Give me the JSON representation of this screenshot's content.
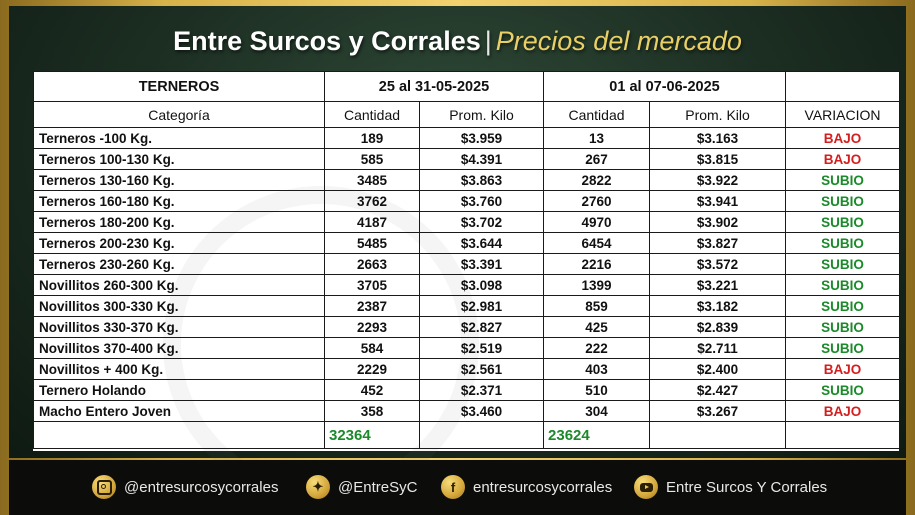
{
  "header": {
    "title": "Entre Surcos y Corrales",
    "separator": "|",
    "subtitle": "Precios del mercado"
  },
  "table": {
    "section_label": "TERNEROS",
    "period1": "25 al 31-05-2025",
    "period2": "01 al 07-06-2025",
    "columns": {
      "category": "Categoría",
      "qty1": "Cantidad",
      "price1": "Prom. Kilo",
      "qty2": "Cantidad",
      "price2": "Prom. Kilo",
      "variation": "VARIACION"
    },
    "rows": [
      {
        "name": "Terneros -100 Kg.",
        "qty1": "189",
        "price1": "$3.959",
        "qty2": "13",
        "price2": "$3.163",
        "var": "BAJO"
      },
      {
        "name": "Terneros 100-130 Kg.",
        "qty1": "585",
        "price1": "$4.391",
        "qty2": "267",
        "price2": "$3.815",
        "var": "BAJO"
      },
      {
        "name": "Terneros 130-160 Kg.",
        "qty1": "3485",
        "price1": "$3.863",
        "qty2": "2822",
        "price2": "$3.922",
        "var": "SUBIO"
      },
      {
        "name": "Terneros 160-180 Kg.",
        "qty1": "3762",
        "price1": "$3.760",
        "qty2": "2760",
        "price2": "$3.941",
        "var": "SUBIO"
      },
      {
        "name": "Terneros 180-200 Kg.",
        "qty1": "4187",
        "price1": "$3.702",
        "qty2": "4970",
        "price2": "$3.902",
        "var": "SUBIO"
      },
      {
        "name": "Terneros 200-230 Kg.",
        "qty1": "5485",
        "price1": "$3.644",
        "qty2": "6454",
        "price2": "$3.827",
        "var": "SUBIO"
      },
      {
        "name": "Terneros 230-260 Kg.",
        "qty1": "2663",
        "price1": "$3.391",
        "qty2": "2216",
        "price2": "$3.572",
        "var": "SUBIO"
      },
      {
        "name": "Novillitos 260-300 Kg.",
        "qty1": "3705",
        "price1": "$3.098",
        "qty2": "1399",
        "price2": "$3.221",
        "var": "SUBIO"
      },
      {
        "name": "Novillitos 300-330 Kg.",
        "qty1": "2387",
        "price1": "$2.981",
        "qty2": "859",
        "price2": "$3.182",
        "var": "SUBIO"
      },
      {
        "name": "Novillitos 330-370 Kg.",
        "qty1": "2293",
        "price1": "$2.827",
        "qty2": "425",
        "price2": "$2.839",
        "var": "SUBIO"
      },
      {
        "name": "Novillitos 370-400 Kg.",
        "qty1": "584",
        "price1": "$2.519",
        "qty2": "222",
        "price2": "$2.711",
        "var": "SUBIO"
      },
      {
        "name": "Novillitos  + 400 Kg.",
        "qty1": "2229",
        "price1": "$2.561",
        "qty2": "403",
        "price2": "$2.400",
        "var": "BAJO"
      },
      {
        "name": "Ternero Holando",
        "qty1": "452",
        "price1": "$2.371",
        "qty2": "510",
        "price2": "$2.427",
        "var": "SUBIO"
      },
      {
        "name": "Macho Entero Joven",
        "qty1": "358",
        "price1": "$3.460",
        "qty2": "304",
        "price2": "$3.267",
        "var": "BAJO"
      }
    ],
    "total1": "32364",
    "total2": "23624"
  },
  "colors": {
    "up": "#1b8a2a",
    "down": "#d41e1e",
    "gold": "#d8b24a",
    "panel_green": "#1b2c21"
  },
  "footer": {
    "instagram": {
      "icon": "instagram-icon",
      "label": "@entresurcosycorrales"
    },
    "twitter": {
      "icon": "twitter-icon",
      "label": "@EntreSyC"
    },
    "facebook": {
      "icon": "facebook-icon",
      "label": "entresurcosycorrales"
    },
    "youtube": {
      "icon": "youtube-icon",
      "label": "Entre Surcos Y Corrales"
    }
  }
}
